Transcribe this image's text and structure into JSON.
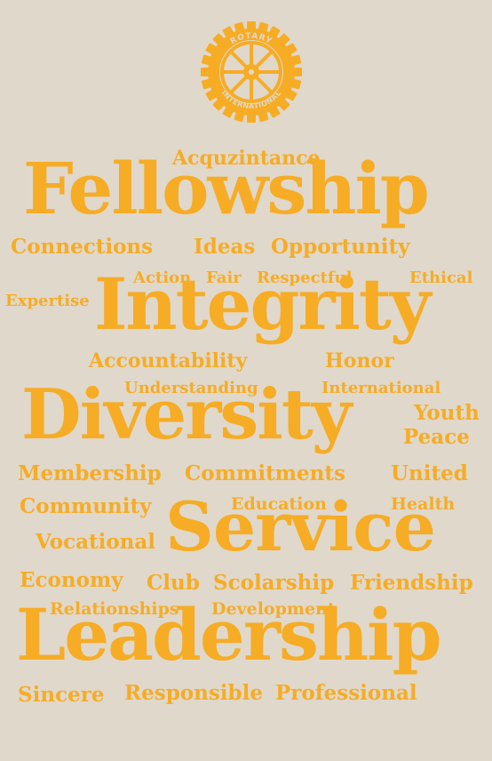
{
  "colors": {
    "background": "#e0d8cb",
    "word": "#f6ac24"
  },
  "logo": {
    "text_top": "ROTARY",
    "text_bottom": "INTERNATIONAL",
    "icon": "rotary-wheel-icon"
  },
  "words": {
    "acquzintance": "Acquzintance",
    "fellowship": "Fellowship",
    "connections": "Connections",
    "ideas": "Ideas",
    "opportunity": "Opportunity",
    "action": "Action",
    "fair": "Fair",
    "respectful": "Respectful",
    "ethical": "Ethical",
    "expertise": "Expertise",
    "integrity": "Integrity",
    "accountability": "Accountability",
    "honor": "Honor",
    "understanding": "Understanding",
    "international": "International",
    "diversity": "Diversity",
    "youth": "Youth",
    "peace": "Peace",
    "membership": "Membership",
    "commitments": "Commitments",
    "united": "United",
    "community": "Community",
    "education": "Education",
    "health": "Health",
    "service": "Service",
    "vocational": "Vocational",
    "economy": "Economy",
    "club": "Club",
    "scolarship": "Scolarship",
    "friendship": "Friendship",
    "relationships": "Relationships",
    "development": "Development",
    "leadership": "Leadership",
    "sincere": "Sincere",
    "responsible": "Responsible",
    "professional": "Professional"
  }
}
